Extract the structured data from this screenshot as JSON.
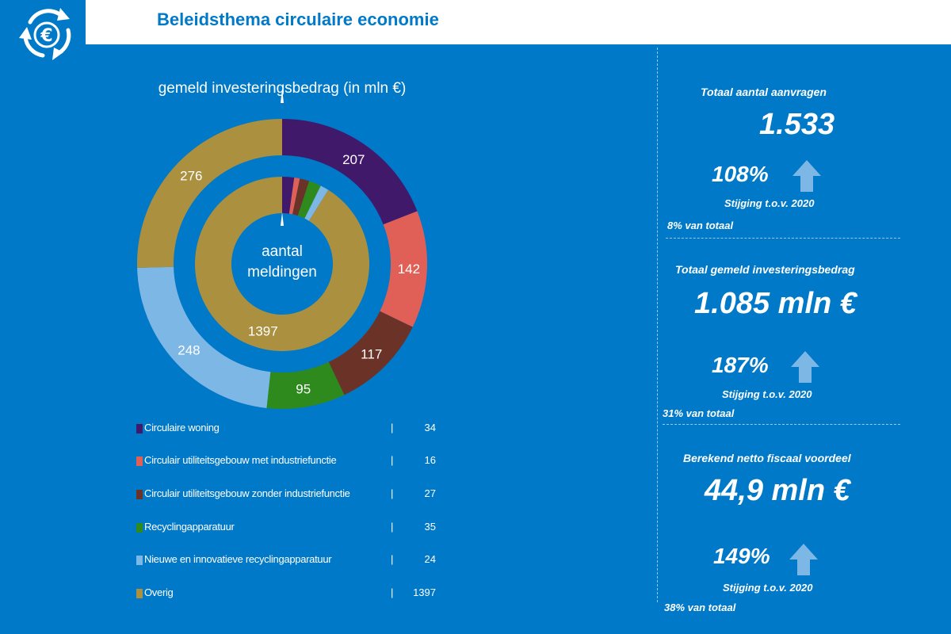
{
  "header": {
    "title": "Beleidsthema circulaire economie"
  },
  "icons": {
    "logo": "euro-recycle-icon",
    "trend": "arrow-up-icon"
  },
  "colors": {
    "background": "#0079c8",
    "header": "#ffffff",
    "title": "#0079c8",
    "series": [
      "#40196a",
      "#e06057",
      "#6b3328",
      "#2f8a1d",
      "#7db7e6",
      "#ab9040"
    ],
    "arrow": "#7db7e6"
  },
  "chart_data": {
    "type": "donut",
    "outer_ring": {
      "title": "gemeld investeringsbedrag (in mln €)",
      "values": [
        207,
        142,
        117,
        95,
        248,
        276
      ],
      "labels": [
        "207",
        "142",
        "117",
        "95",
        "248",
        "276"
      ]
    },
    "inner_ring": {
      "title": "aantal meldingen",
      "title_lines": [
        "aantal",
        "meldingen"
      ],
      "values": [
        34,
        16,
        27,
        35,
        24,
        1397
      ],
      "labels": [
        "",
        "",
        "",
        "",
        "",
        "1397"
      ]
    },
    "categories": [
      "Circulaire woning",
      "Circulair utiliteitsgebouw met industriefunctie",
      "Circulair utiliteitsgebouw zonder industriefunctie",
      "Recyclingapparatuur",
      "Nieuwe en innovatieve recyclingapparatuur",
      "Overig"
    ]
  },
  "legend": {
    "separator": "|",
    "items": [
      {
        "label": "Circulaire woning",
        "count": "34"
      },
      {
        "label": "Circulair utiliteitsgebouw met industriefunctie",
        "count": "16"
      },
      {
        "label": "Circulair utiliteitsgebouw zonder industriefunctie",
        "count": "27"
      },
      {
        "label": "Recyclingapparatuur",
        "count": "35"
      },
      {
        "label": "Nieuwe en innovatieve recyclingapparatuur",
        "count": "24"
      },
      {
        "label": "Overig",
        "count": "1397"
      }
    ]
  },
  "stats": [
    {
      "title": "Totaal aantal aanvragen",
      "value": "1.533",
      "change": "108%",
      "change_label": "Stijging t.o.v. 2020",
      "share": "8% van totaal"
    },
    {
      "title": "Totaal gemeld investeringsbedrag",
      "value": "1.085 mln €",
      "change": "187%",
      "change_label": "Stijging t.o.v. 2020",
      "share": "31% van totaal"
    },
    {
      "title": "Berekend netto fiscaal voordeel",
      "value": "44,9 mln €",
      "change": "149%",
      "change_label": "Stijging t.o.v. 2020",
      "share": "38% van totaal"
    }
  ]
}
